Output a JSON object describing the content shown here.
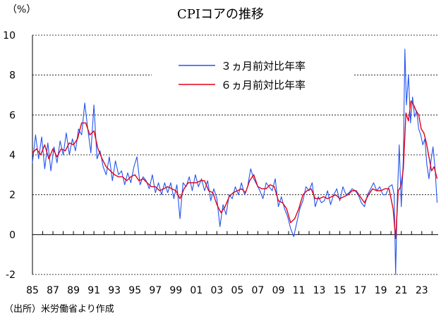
{
  "chart_data": {
    "type": "line",
    "title": "CPIコアの推移",
    "ylabel": "（%）",
    "source": "（出所）米労働省より作成",
    "ylim": [
      -2,
      10
    ],
    "yticks": [
      -2,
      0,
      2,
      4,
      6,
      8,
      10
    ],
    "xlim": [
      1985,
      2024.6
    ],
    "xticks": [
      "85",
      "87",
      "89",
      "91",
      "93",
      "95",
      "97",
      "99",
      "01",
      "03",
      "05",
      "07",
      "09",
      "11",
      "13",
      "15",
      "17",
      "19",
      "21",
      "23"
    ],
    "xtick_years": [
      1985,
      1987,
      1989,
      1991,
      1993,
      1995,
      1997,
      1999,
      2001,
      2003,
      2005,
      2007,
      2009,
      2011,
      2013,
      2015,
      2017,
      2019,
      2021,
      2023
    ],
    "legend": "top-center",
    "series": [
      {
        "name": "３ヵ月前対比年率",
        "color": "#2255ee",
        "x": [
          1985.0,
          1985.3,
          1985.6,
          1985.9,
          1986.2,
          1986.5,
          1986.8,
          1987.1,
          1987.4,
          1987.7,
          1988.0,
          1988.3,
          1988.6,
          1988.9,
          1989.2,
          1989.5,
          1989.8,
          1990.1,
          1990.4,
          1990.7,
          1991.0,
          1991.3,
          1991.6,
          1991.9,
          1992.2,
          1992.5,
          1992.8,
          1993.1,
          1993.4,
          1993.7,
          1994.0,
          1994.3,
          1994.6,
          1994.9,
          1995.2,
          1995.5,
          1995.8,
          1996.1,
          1996.4,
          1996.7,
          1997.0,
          1997.3,
          1997.6,
          1997.9,
          1998.2,
          1998.5,
          1998.8,
          1999.1,
          1999.4,
          1999.7,
          2000.0,
          2000.3,
          2000.6,
          2000.9,
          2001.2,
          2001.5,
          2001.8,
          2002.1,
          2002.4,
          2002.7,
          2003.0,
          2003.3,
          2003.6,
          2003.9,
          2004.2,
          2004.5,
          2004.8,
          2005.1,
          2005.4,
          2005.7,
          2006.0,
          2006.3,
          2006.6,
          2006.9,
          2007.2,
          2007.5,
          2007.8,
          2008.1,
          2008.4,
          2008.7,
          2009.0,
          2009.3,
          2009.6,
          2009.9,
          2010.2,
          2010.5,
          2010.8,
          2011.1,
          2011.4,
          2011.7,
          2012.0,
          2012.3,
          2012.6,
          2012.9,
          2013.2,
          2013.5,
          2013.8,
          2014.1,
          2014.4,
          2014.7,
          2015.0,
          2015.3,
          2015.6,
          2015.9,
          2016.2,
          2016.5,
          2016.8,
          2017.1,
          2017.4,
          2017.7,
          2018.0,
          2018.3,
          2018.6,
          2018.9,
          2019.2,
          2019.5,
          2019.8,
          2020.1,
          2020.3,
          2020.45,
          2020.6,
          2020.8,
          2021.0,
          2021.2,
          2021.35,
          2021.5,
          2021.7,
          2021.9,
          2022.1,
          2022.3,
          2022.5,
          2022.7,
          2022.9,
          2023.1,
          2023.3,
          2023.5,
          2023.7,
          2023.9,
          2024.1,
          2024.3,
          2024.5
        ],
        "values": [
          3.6,
          5.0,
          3.8,
          4.9,
          3.3,
          4.6,
          3.2,
          4.4,
          3.6,
          4.7,
          4.0,
          5.1,
          4.0,
          4.8,
          4.2,
          5.3,
          5.0,
          6.6,
          5.3,
          4.1,
          6.5,
          3.8,
          4.2,
          3.4,
          3.0,
          3.9,
          2.7,
          3.7,
          3.0,
          3.2,
          2.5,
          3.1,
          2.6,
          3.4,
          3.9,
          2.5,
          2.9,
          2.7,
          2.3,
          3.0,
          2.1,
          2.6,
          2.0,
          2.6,
          2.1,
          2.6,
          1.8,
          2.5,
          0.8,
          2.6,
          2.4,
          2.9,
          2.2,
          3.0,
          2.4,
          2.8,
          2.2,
          2.7,
          1.7,
          2.3,
          1.8,
          0.4,
          1.5,
          1.0,
          2.0,
          1.8,
          2.4,
          2.0,
          2.6,
          2.0,
          2.4,
          3.3,
          2.8,
          2.5,
          2.2,
          1.8,
          2.6,
          2.4,
          2.2,
          2.8,
          1.4,
          1.9,
          1.3,
          0.9,
          0.3,
          -0.1,
          0.6,
          1.3,
          1.7,
          2.4,
          2.2,
          2.6,
          1.4,
          1.9,
          1.6,
          1.7,
          2.2,
          1.5,
          2.0,
          2.3,
          1.7,
          2.4,
          2.0,
          2.1,
          2.3,
          2.2,
          2.0,
          1.6,
          1.4,
          2.0,
          2.3,
          2.6,
          2.2,
          2.4,
          2.0,
          2.0,
          2.4,
          2.5,
          2.0,
          -2.0,
          1.6,
          4.5,
          1.4,
          3.8,
          9.3,
          6.5,
          8.0,
          5.6,
          6.9,
          5.9,
          6.2,
          5.3,
          5.0,
          4.5,
          4.8,
          3.5,
          2.8,
          3.7,
          4.4,
          3.3,
          1.6
        ]
      },
      {
        "name": "６ヵ月前対比年率",
        "color": "#e0001b",
        "x": [
          1985.0,
          1985.4,
          1985.8,
          1986.2,
          1986.6,
          1987.0,
          1987.4,
          1987.8,
          1988.2,
          1988.6,
          1989.0,
          1989.4,
          1989.8,
          1990.2,
          1990.6,
          1991.0,
          1991.4,
          1991.8,
          1992.2,
          1992.6,
          1993.0,
          1993.4,
          1993.8,
          1994.2,
          1994.6,
          1995.0,
          1995.4,
          1995.8,
          1996.2,
          1996.6,
          1997.0,
          1997.4,
          1997.8,
          1998.2,
          1998.6,
          1999.0,
          1999.4,
          1999.8,
          2000.2,
          2000.6,
          2001.0,
          2001.4,
          2001.8,
          2002.2,
          2002.6,
          2003.0,
          2003.4,
          2003.8,
          2004.2,
          2004.6,
          2005.0,
          2005.4,
          2005.8,
          2006.2,
          2006.6,
          2007.0,
          2007.4,
          2007.8,
          2008.2,
          2008.6,
          2009.0,
          2009.4,
          2009.8,
          2010.2,
          2010.6,
          2011.0,
          2011.4,
          2011.8,
          2012.2,
          2012.6,
          2013.0,
          2013.4,
          2013.8,
          2014.2,
          2014.6,
          2015.0,
          2015.4,
          2015.8,
          2016.2,
          2016.6,
          2017.0,
          2017.4,
          2017.8,
          2018.2,
          2018.6,
          2019.0,
          2019.4,
          2019.8,
          2020.2,
          2020.45,
          2020.7,
          2020.95,
          2021.2,
          2021.45,
          2021.7,
          2021.95,
          2022.2,
          2022.45,
          2022.7,
          2022.95,
          2023.2,
          2023.45,
          2023.7,
          2023.95,
          2024.2,
          2024.5
        ],
        "values": [
          4.1,
          4.3,
          4.0,
          4.5,
          3.8,
          4.3,
          3.9,
          4.3,
          4.2,
          4.6,
          4.5,
          4.8,
          5.6,
          5.6,
          5.0,
          5.2,
          4.3,
          3.8,
          3.4,
          3.2,
          3.0,
          2.9,
          2.9,
          2.7,
          2.9,
          3.0,
          2.7,
          2.8,
          2.6,
          2.4,
          2.4,
          2.2,
          2.3,
          2.4,
          2.3,
          2.2,
          1.8,
          2.3,
          2.6,
          2.6,
          2.6,
          2.7,
          2.7,
          2.2,
          2.1,
          1.5,
          1.1,
          1.4,
          1.9,
          2.1,
          2.2,
          2.3,
          2.1,
          2.7,
          3.0,
          2.4,
          2.3,
          2.3,
          2.5,
          2.4,
          1.7,
          1.6,
          1.3,
          0.6,
          0.8,
          1.3,
          2.0,
          2.2,
          2.3,
          1.8,
          1.8,
          1.9,
          1.8,
          1.9,
          2.0,
          1.8,
          1.9,
          2.0,
          2.2,
          2.2,
          1.9,
          1.6,
          2.0,
          2.3,
          2.2,
          2.2,
          2.3,
          2.3,
          1.3,
          -0.2,
          2.2,
          2.4,
          3.3,
          6.1,
          5.7,
          6.7,
          6.5,
          6.2,
          6.0,
          5.3,
          5.1,
          4.6,
          3.9,
          3.2,
          3.4,
          2.8
        ]
      }
    ]
  }
}
